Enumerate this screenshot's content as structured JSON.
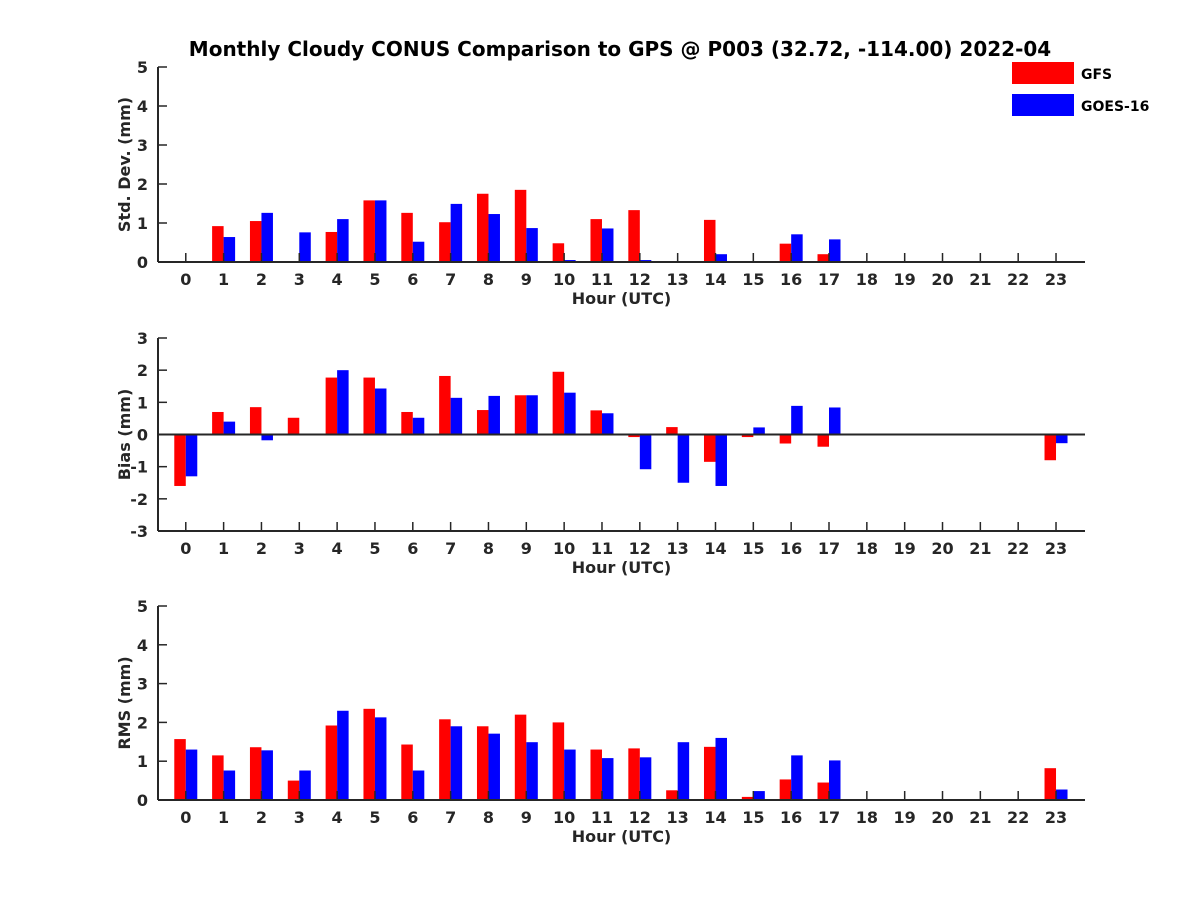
{
  "chart_data": {
    "type": "bar",
    "title": "Monthly Cloudy CONUS Comparison to GPS @ P003 (32.72, -114.00) 2022-04",
    "legend": {
      "placement": "top-right",
      "entries": [
        {
          "name": "GFS",
          "color": "#ff0000"
        },
        {
          "name": "GOES-16",
          "color": "#0000ff"
        }
      ]
    },
    "categories": [
      "0",
      "1",
      "2",
      "3",
      "4",
      "5",
      "6",
      "7",
      "8",
      "9",
      "10",
      "11",
      "12",
      "13",
      "14",
      "15",
      "16",
      "17",
      "18",
      "19",
      "20",
      "21",
      "22",
      "23"
    ],
    "panels": [
      {
        "ylabel": "Std. Dev. (mm)",
        "xlabel": "Hour (UTC)",
        "ylim": [
          0,
          5
        ],
        "yticks": [
          "0",
          "1",
          "2",
          "3",
          "4",
          "5"
        ],
        "series": [
          {
            "name": "GFS",
            "values": [
              null,
              0.92,
              1.05,
              null,
              0.77,
              1.58,
              1.26,
              1.02,
              1.75,
              1.85,
              0.48,
              1.1,
              1.33,
              null,
              1.08,
              null,
              0.47,
              0.2,
              null,
              null,
              null,
              null,
              null,
              null
            ]
          },
          {
            "name": "GOES-16",
            "values": [
              null,
              0.64,
              1.26,
              0.76,
              1.1,
              1.58,
              0.52,
              1.49,
              1.23,
              0.87,
              0.05,
              0.86,
              0.05,
              null,
              0.2,
              null,
              0.71,
              0.58,
              null,
              null,
              null,
              null,
              null,
              null
            ]
          }
        ]
      },
      {
        "ylabel": "Bias (mm)",
        "xlabel": "Hour (UTC)",
        "ylim": [
          -3,
          3
        ],
        "yticks": [
          "-3",
          "-2",
          "-1",
          "0",
          "1",
          "2",
          "3"
        ],
        "series": [
          {
            "name": "GFS",
            "values": [
              -1.6,
              0.7,
              0.85,
              0.52,
              1.77,
              1.77,
              0.7,
              1.82,
              0.76,
              1.22,
              1.95,
              0.75,
              -0.08,
              0.23,
              -0.85,
              -0.08,
              -0.28,
              -0.38,
              null,
              null,
              null,
              null,
              null,
              -0.8
            ]
          },
          {
            "name": "GOES-16",
            "values": [
              -1.3,
              0.4,
              -0.18,
              null,
              2.0,
              1.43,
              0.52,
              1.14,
              1.2,
              1.22,
              1.3,
              0.66,
              -1.08,
              -1.5,
              -1.6,
              0.22,
              0.89,
              0.84,
              null,
              null,
              null,
              null,
              null,
              -0.27
            ]
          }
        ]
      },
      {
        "ylabel": "RMS (mm)",
        "xlabel": "Hour (UTC)",
        "ylim": [
          0,
          5
        ],
        "yticks": [
          "0",
          "1",
          "2",
          "3",
          "4",
          "5"
        ],
        "series": [
          {
            "name": "GFS",
            "values": [
              1.57,
              1.15,
              1.36,
              0.5,
              1.92,
              2.35,
              1.43,
              2.08,
              1.9,
              2.2,
              2.0,
              1.3,
              1.33,
              0.25,
              1.37,
              0.08,
              0.53,
              0.45,
              null,
              null,
              null,
              null,
              null,
              0.82
            ]
          },
          {
            "name": "GOES-16",
            "values": [
              1.3,
              0.76,
              1.28,
              0.76,
              2.3,
              2.13,
              0.76,
              1.9,
              1.71,
              1.49,
              1.3,
              1.08,
              1.1,
              1.49,
              1.6,
              0.23,
              1.15,
              1.02,
              null,
              null,
              null,
              null,
              null,
              0.27
            ]
          }
        ]
      }
    ]
  }
}
